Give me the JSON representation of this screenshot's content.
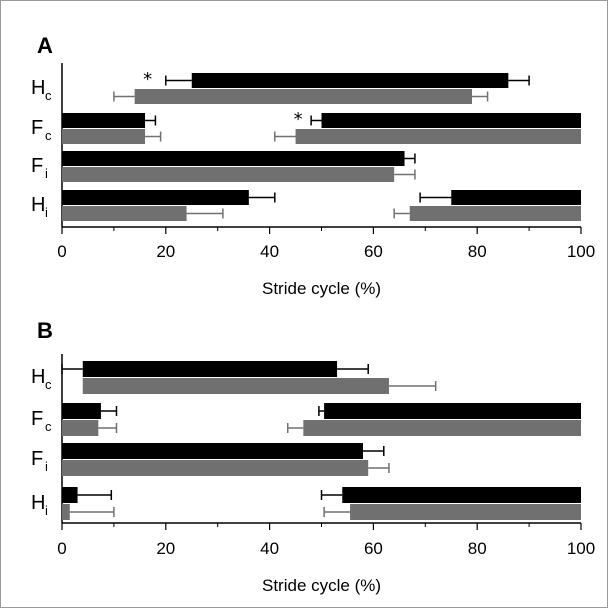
{
  "chart_data": [
    {
      "type": "bar",
      "panel_label": "A",
      "xlabel": "Stride cycle (%)",
      "xlim": [
        0,
        100
      ],
      "xticks": [
        "0",
        "20",
        "40",
        "60",
        "80",
        "100"
      ],
      "rows": [
        {
          "label": "H",
          "sub": "c",
          "star": "*",
          "star_at": 16.5,
          "black": [
            {
              "start": 25,
              "end": 86,
              "err_start": 5,
              "err_end": 4
            }
          ],
          "gray": [
            {
              "start": 14,
              "end": 79,
              "err_start": 4,
              "err_end": 3
            }
          ]
        },
        {
          "label": "F",
          "sub": "c",
          "star": "*",
          "star_at": 45.5,
          "black": [
            {
              "start": 0,
              "end": 16,
              "err_start": 0,
              "err_end": 2
            },
            {
              "start": 50,
              "end": 100,
              "err_start": 2,
              "err_end": 0
            }
          ],
          "gray": [
            {
              "start": 0,
              "end": 16,
              "err_start": 0,
              "err_end": 3
            },
            {
              "start": 45,
              "end": 100,
              "err_start": 4,
              "err_end": 0
            }
          ]
        },
        {
          "label": "F",
          "sub": "i",
          "black": [
            {
              "start": 0,
              "end": 66,
              "err_start": 0,
              "err_end": 2
            }
          ],
          "gray": [
            {
              "start": 0,
              "end": 64,
              "err_start": 0,
              "err_end": 4
            }
          ]
        },
        {
          "label": "H",
          "sub": "i",
          "black": [
            {
              "start": 0,
              "end": 36,
              "err_start": 0,
              "err_end": 5
            },
            {
              "start": 75,
              "end": 100,
              "err_start": 6,
              "err_end": 0
            }
          ],
          "gray": [
            {
              "start": 0,
              "end": 24,
              "err_start": 0,
              "err_end": 7
            },
            {
              "start": 67,
              "end": 100,
              "err_start": 3,
              "err_end": 0
            }
          ]
        }
      ]
    },
    {
      "type": "bar",
      "panel_label": "B",
      "xlabel": "Stride cycle (%)",
      "xlim": [
        0,
        100
      ],
      "xticks": [
        "0",
        "20",
        "40",
        "60",
        "80",
        "100"
      ],
      "rows": [
        {
          "label": "H",
          "sub": "c",
          "black": [
            {
              "start": 4,
              "end": 53,
              "err_start": 4,
              "err_end": 6
            }
          ],
          "gray": [
            {
              "start": 4,
              "end": 63,
              "err_start": 0,
              "err_end": 9
            }
          ]
        },
        {
          "label": "F",
          "sub": "c",
          "black": [
            {
              "start": 0,
              "end": 7.5,
              "err_start": 0,
              "err_end": 3
            },
            {
              "start": 50.5,
              "end": 100,
              "err_start": 1,
              "err_end": 0
            }
          ],
          "gray": [
            {
              "start": 0,
              "end": 7,
              "err_start": 0,
              "err_end": 3.5
            },
            {
              "start": 46.5,
              "end": 100,
              "err_start": 3,
              "err_end": 0
            }
          ]
        },
        {
          "label": "F",
          "sub": "i",
          "black": [
            {
              "start": 0,
              "end": 58,
              "err_start": 0,
              "err_end": 4
            }
          ],
          "gray": [
            {
              "start": 0,
              "end": 59,
              "err_start": 0,
              "err_end": 4
            }
          ]
        },
        {
          "label": "H",
          "sub": "i",
          "black": [
            {
              "start": 0,
              "end": 3,
              "err_start": 0,
              "err_end": 6.5
            },
            {
              "start": 54,
              "end": 100,
              "err_start": 4,
              "err_end": 0
            }
          ],
          "gray": [
            {
              "start": 0,
              "end": 1.5,
              "err_start": 0,
              "err_end": 8.5
            },
            {
              "start": 55.5,
              "end": 100,
              "err_start": 5,
              "err_end": 0
            }
          ]
        }
      ]
    }
  ],
  "colors": {
    "black_bar": "#000000",
    "gray_bar": "#707070",
    "axis": "#000000"
  }
}
